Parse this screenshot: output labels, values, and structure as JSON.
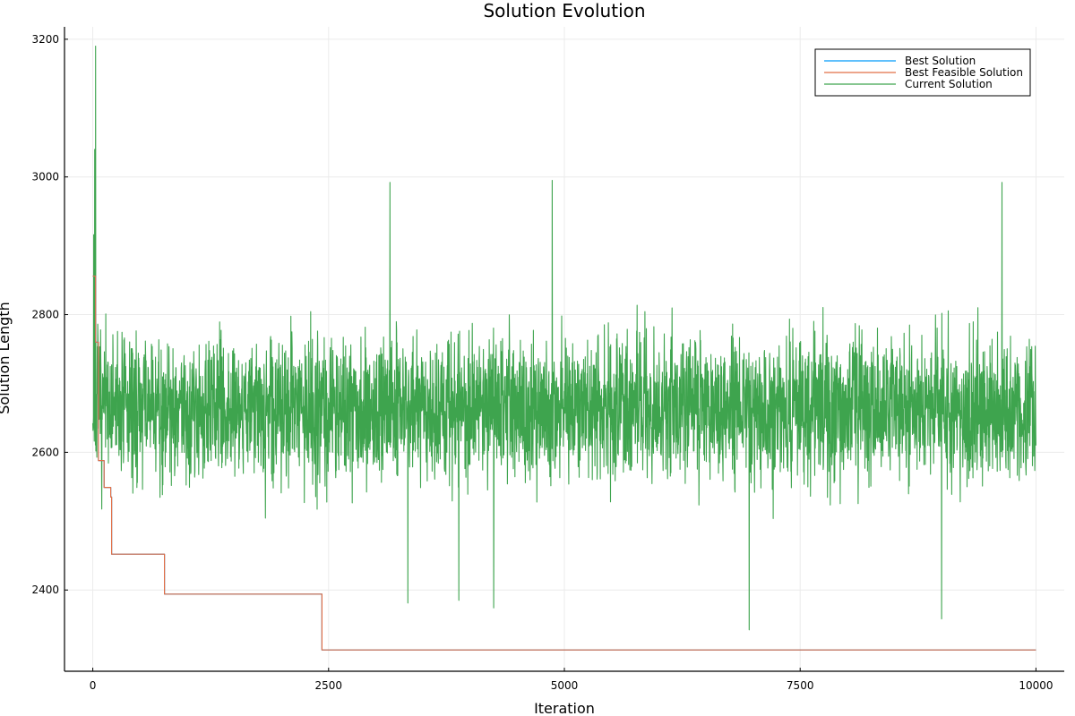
{
  "colors": {
    "best": "#009AFA",
    "feasible": "#E26F46",
    "current": "#3EA44E",
    "grid": "#EBEBEB",
    "axis": "#000000"
  },
  "chart_data": {
    "type": "line",
    "title": "Solution Evolution",
    "xlabel": "Iteration",
    "ylabel": "Solution Length",
    "xlim": [
      -300,
      10300
    ],
    "ylim": [
      2282,
      3218
    ],
    "xticks": [
      0,
      2500,
      5000,
      7500,
      10000
    ],
    "xtick_labels": [
      "0",
      "2500",
      "5000",
      "7500",
      "10000"
    ],
    "yticks": [
      2400,
      2600,
      2800,
      3000,
      3200
    ],
    "ytick_labels": [
      "2400",
      "2600",
      "2800",
      "3000",
      "3200"
    ],
    "grid": true,
    "legend_position": "top-right",
    "series": [
      {
        "name": "Best Solution",
        "kind": "step",
        "x": [
          0,
          30,
          30,
          60,
          60,
          120,
          120,
          190,
          190,
          200,
          200,
          760,
          760,
          2430,
          2430,
          10000
        ],
        "y": [
          2856,
          2856,
          2760,
          2760,
          2588,
          2588,
          2549,
          2549,
          2535,
          2535,
          2452,
          2452,
          2394,
          2394,
          2313,
          2313
        ]
      },
      {
        "name": "Best Feasible Solution",
        "kind": "step",
        "x": [
          0,
          30,
          30,
          60,
          60,
          120,
          120,
          190,
          190,
          200,
          200,
          760,
          760,
          2430,
          2430,
          10000
        ],
        "y": [
          2856,
          2856,
          2760,
          2760,
          2588,
          2588,
          2549,
          2549,
          2535,
          2535,
          2452,
          2452,
          2394,
          2394,
          2313,
          2313
        ]
      },
      {
        "name": "Current Solution",
        "kind": "noisy",
        "count": 4000,
        "x_start": 0,
        "x_end": 10000,
        "mean": 2665,
        "spread": 95,
        "seed": 7,
        "peaks": [
          {
            "x": 10,
            "y": 2916
          },
          {
            "x": 20,
            "y": 3040
          },
          {
            "x": 30,
            "y": 3190
          },
          {
            "x": 45,
            "y": 2700
          },
          {
            "x": 3150,
            "y": 2992
          },
          {
            "x": 3340,
            "y": 2381
          },
          {
            "x": 3880,
            "y": 2385
          },
          {
            "x": 4250,
            "y": 2374
          },
          {
            "x": 4870,
            "y": 2995
          },
          {
            "x": 6960,
            "y": 2342
          },
          {
            "x": 9000,
            "y": 2358
          },
          {
            "x": 9640,
            "y": 2992
          },
          {
            "x": 10000,
            "y": 2610
          }
        ]
      }
    ]
  }
}
